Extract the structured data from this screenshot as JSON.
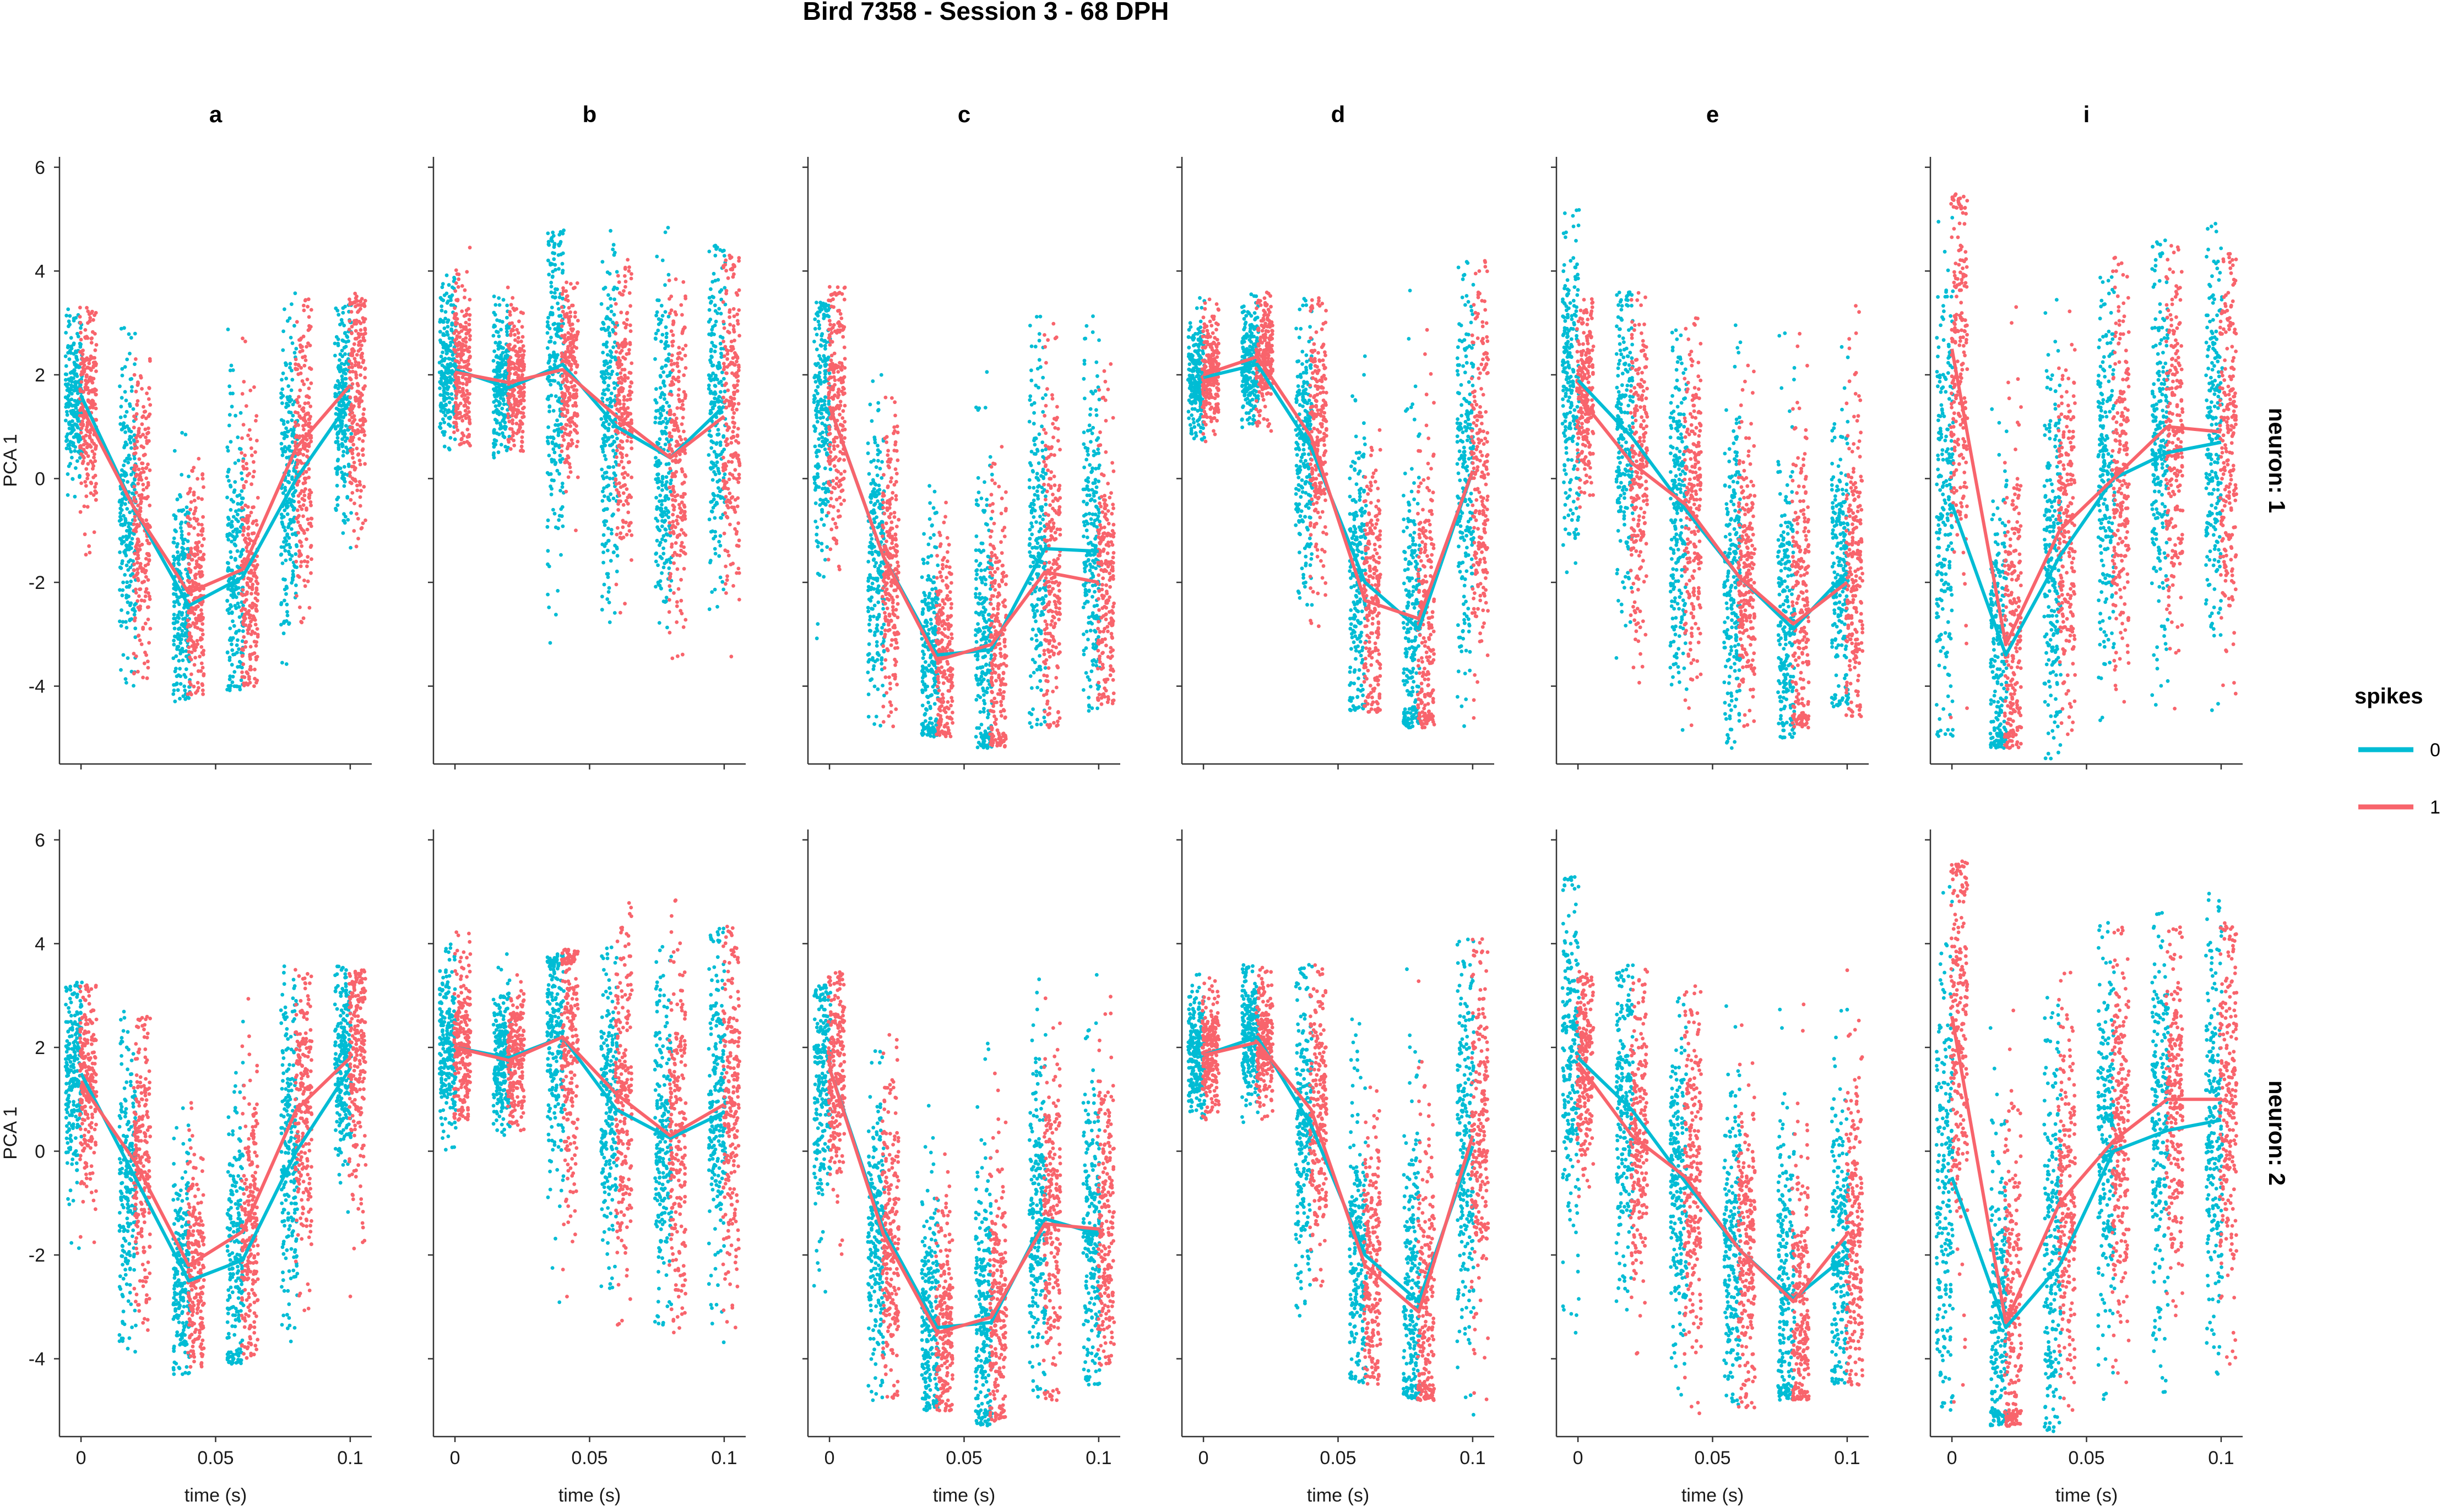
{
  "chart_data": {
    "type": "scatter",
    "title": "Bird 7358 - Session 3 - 68 DPH",
    "xlabel": "time (s)",
    "ylabel": "PCA 1",
    "xlim": [
      -0.008,
      0.108
    ],
    "ylim": [
      -5.5,
      6.2
    ],
    "xticks": [
      0,
      0.05,
      0.1
    ],
    "xtick_labels": [
      "0",
      "0.05",
      "0.1"
    ],
    "yticks": [
      -4,
      -2,
      0,
      2,
      4,
      6
    ],
    "ytick_labels": [
      "-4",
      "-2",
      "0",
      "2",
      "4",
      "6"
    ],
    "grid": false,
    "legend": {
      "title": "spikes",
      "position": "right",
      "entries": [
        {
          "label": "0",
          "color": "#00BCD4"
        },
        {
          "label": "1",
          "color": "#F8646C"
        }
      ]
    },
    "columns": [
      "a",
      "b",
      "c",
      "d",
      "e",
      "i"
    ],
    "rows": [
      "neuron: 1",
      "neuron: 2"
    ],
    "x": [
      0,
      0.02,
      0.04,
      0.06,
      0.08,
      0.1
    ],
    "panels": [
      {
        "column": "a",
        "row": "neuron: 1",
        "series": [
          {
            "name": "0",
            "means": [
              1.6,
              -0.6,
              -2.45,
              -1.9,
              0.0,
              1.5
            ],
            "lows": [
              -0.5,
              -4.0,
              -4.3,
              -4.1,
              -3.8,
              -1.5
            ],
            "highs": [
              3.3,
              3.0,
              1.2,
              3.2,
              3.6,
              3.5
            ]
          },
          {
            "name": "1",
            "means": [
              1.4,
              -0.6,
              -2.2,
              -1.75,
              0.6,
              1.8
            ],
            "lows": [
              -1.8,
              -4.0,
              -4.2,
              -4.0,
              -3.6,
              -3.0
            ],
            "highs": [
              3.3,
              3.0,
              1.0,
              3.0,
              3.5,
              3.6
            ]
          }
        ]
      },
      {
        "column": "b",
        "row": "neuron: 1",
        "series": [
          {
            "name": "0",
            "means": [
              2.1,
              1.75,
              2.2,
              1.0,
              0.4,
              1.4
            ],
            "lows": [
              0.5,
              0.4,
              -3.8,
              -3.0,
              -3.0,
              -3.7
            ],
            "highs": [
              4.0,
              3.8,
              4.8,
              4.8,
              4.9,
              4.5
            ]
          },
          {
            "name": "1",
            "means": [
              2.05,
              1.85,
              2.1,
              1.2,
              0.4,
              1.2
            ],
            "lows": [
              0.6,
              0.5,
              -1.0,
              -3.5,
              -3.5,
              -3.5
            ],
            "highs": [
              4.5,
              3.9,
              3.8,
              4.3,
              4.0,
              4.3
            ]
          }
        ]
      },
      {
        "column": "c",
        "row": "neuron: 1",
        "series": [
          {
            "name": "0",
            "means": [
              1.4,
              -1.5,
              -3.4,
              -3.3,
              -1.35,
              -1.4
            ],
            "lows": [
              -3.4,
              -4.8,
              -5.0,
              -5.2,
              -4.8,
              -4.5
            ],
            "highs": [
              3.4,
              2.0,
              1.0,
              2.1,
              3.5,
              3.3
            ]
          },
          {
            "name": "1",
            "means": [
              1.4,
              -1.5,
              -3.5,
              -3.2,
              -1.8,
              -2.0
            ],
            "lows": [
              -2.4,
              -4.8,
              -5.0,
              -5.2,
              -4.8,
              -4.4
            ],
            "highs": [
              3.7,
              1.6,
              0.2,
              2.0,
              3.2,
              3.0
            ]
          }
        ]
      },
      {
        "column": "d",
        "row": "neuron: 1",
        "series": [
          {
            "name": "0",
            "means": [
              1.95,
              2.2,
              0.6,
              -2.0,
              -2.9,
              0.15
            ],
            "lows": [
              0.7,
              0.9,
              -3.2,
              -4.5,
              -4.8,
              -5.4
            ],
            "highs": [
              3.5,
              3.6,
              3.5,
              3.0,
              4.0,
              4.2
            ]
          },
          {
            "name": "1",
            "means": [
              2.0,
              2.35,
              0.8,
              -2.35,
              -2.7,
              0.15
            ],
            "lows": [
              0.7,
              0.9,
              -3.0,
              -4.5,
              -4.8,
              -4.8
            ],
            "highs": [
              3.5,
              3.6,
              3.5,
              1.8,
              3.6,
              4.2
            ]
          }
        ]
      },
      {
        "column": "e",
        "row": "neuron: 1",
        "series": [
          {
            "name": "0",
            "means": [
              1.9,
              0.8,
              -0.6,
              -1.9,
              -2.9,
              -1.8
            ],
            "lows": [
              -2.0,
              -4.0,
              -5.0,
              -5.2,
              -5.0,
              -4.4
            ],
            "highs": [
              5.3,
              3.6,
              3.0,
              3.4,
              3.0,
              3.0
            ]
          },
          {
            "name": "1",
            "means": [
              1.6,
              0.3,
              -0.5,
              -1.9,
              -2.8,
              -2.0
            ],
            "lows": [
              -1.3,
              -4.0,
              -5.0,
              -4.8,
              -4.8,
              -4.6
            ],
            "highs": [
              3.5,
              3.6,
              3.3,
              2.5,
              3.2,
              3.5
            ]
          }
        ]
      },
      {
        "column": "i",
        "row": "neuron: 1",
        "series": [
          {
            "name": "0",
            "means": [
              -0.5,
              -3.4,
              -1.5,
              0.0,
              0.5,
              0.7
            ],
            "lows": [
              -5.0,
              -5.2,
              -5.4,
              -4.8,
              -4.8,
              -4.5
            ],
            "highs": [
              5.6,
              3.5,
              3.8,
              4.0,
              4.6,
              5.0
            ]
          },
          {
            "name": "1",
            "means": [
              2.5,
              -3.2,
              -1.0,
              0.0,
              1.0,
              0.9
            ],
            "lows": [
              -5.0,
              -5.2,
              -5.0,
              -4.5,
              -4.5,
              -4.5
            ],
            "highs": [
              5.5,
              3.5,
              3.5,
              4.4,
              4.5,
              4.4
            ]
          }
        ]
      },
      {
        "column": "a",
        "row": "neuron: 2",
        "series": [
          {
            "name": "0",
            "means": [
              1.5,
              -0.5,
              -2.5,
              -2.1,
              0.0,
              1.6
            ],
            "lows": [
              -2.0,
              -4.0,
              -4.3,
              -4.1,
              -3.8,
              -1.5
            ],
            "highs": [
              3.3,
              2.7,
              1.0,
              3.2,
              3.6,
              3.6
            ]
          },
          {
            "name": "1",
            "means": [
              1.3,
              -0.2,
              -2.2,
              -1.55,
              0.8,
              1.8
            ],
            "lows": [
              -2.0,
              -3.9,
              -4.2,
              -4.0,
              -3.8,
              -2.8
            ],
            "highs": [
              3.2,
              2.6,
              1.0,
              3.2,
              3.5,
              3.5
            ]
          }
        ]
      },
      {
        "column": "b",
        "row": "neuron: 2",
        "series": [
          {
            "name": "0",
            "means": [
              2.0,
              1.8,
              2.2,
              0.8,
              0.25,
              0.75
            ],
            "lows": [
              0.0,
              0.3,
              -3.0,
              -3.5,
              -3.5,
              -3.7
            ],
            "highs": [
              4.0,
              3.8,
              3.8,
              4.0,
              4.0,
              4.3
            ]
          },
          {
            "name": "1",
            "means": [
              2.0,
              1.75,
              2.2,
              1.1,
              0.3,
              0.9
            ],
            "lows": [
              0.6,
              0.4,
              -3.8,
              -3.5,
              -3.5,
              -3.7
            ],
            "highs": [
              4.5,
              3.8,
              3.9,
              4.9,
              4.9,
              4.4
            ]
          }
        ]
      },
      {
        "column": "c",
        "row": "neuron: 2",
        "series": [
          {
            "name": "0",
            "means": [
              1.6,
              -1.5,
              -3.4,
              -3.3,
              -1.3,
              -1.6
            ],
            "lows": [
              -3.0,
              -4.8,
              -5.0,
              -5.3,
              -4.8,
              -4.5
            ],
            "highs": [
              3.2,
              2.0,
              1.0,
              2.2,
              3.5,
              3.4
            ]
          },
          {
            "name": "1",
            "means": [
              1.6,
              -1.6,
              -3.5,
              -3.2,
              -1.4,
              -1.5
            ],
            "lows": [
              -2.0,
              -4.8,
              -5.0,
              -5.2,
              -4.8,
              -4.2
            ],
            "highs": [
              3.5,
              2.6,
              0.0,
              2.0,
              3.0,
              3.2
            ]
          }
        ]
      },
      {
        "column": "d",
        "row": "neuron: 2",
        "series": [
          {
            "name": "0",
            "means": [
              1.85,
              2.2,
              0.5,
              -2.0,
              -2.9,
              0.1
            ],
            "lows": [
              0.6,
              0.5,
              -3.5,
              -4.5,
              -4.8,
              -5.3
            ],
            "highs": [
              3.5,
              3.6,
              3.6,
              3.0,
              4.0,
              4.2
            ]
          },
          {
            "name": "1",
            "means": [
              1.85,
              2.1,
              0.8,
              -2.2,
              -3.1,
              0.3
            ],
            "lows": [
              0.6,
              0.6,
              -3.3,
              -4.5,
              -4.8,
              -4.8
            ],
            "highs": [
              3.5,
              3.7,
              3.6,
              1.9,
              3.6,
              4.1
            ]
          }
        ]
      },
      {
        "column": "e",
        "row": "neuron: 2",
        "series": [
          {
            "name": "0",
            "means": [
              1.8,
              0.8,
              -0.6,
              -1.9,
              -2.85,
              -2.0
            ],
            "lows": [
              -3.5,
              -4.0,
              -5.0,
              -5.0,
              -4.8,
              -4.5
            ],
            "highs": [
              5.3,
              3.6,
              3.0,
              3.0,
              3.0,
              3.0
            ]
          },
          {
            "name": "1",
            "means": [
              1.7,
              0.3,
              -0.5,
              -1.9,
              -2.9,
              -1.6
            ],
            "lows": [
              -1.0,
              -4.0,
              -5.3,
              -5.0,
              -4.8,
              -4.5
            ],
            "highs": [
              3.5,
              3.5,
              3.3,
              2.5,
              3.0,
              3.5
            ]
          }
        ]
      },
      {
        "column": "i",
        "row": "neuron: 2",
        "series": [
          {
            "name": "0",
            "means": [
              -0.5,
              -3.4,
              -2.2,
              0.0,
              0.4,
              0.6
            ],
            "lows": [
              -5.0,
              -5.3,
              -5.4,
              -4.8,
              -4.8,
              -4.5
            ],
            "highs": [
              5.7,
              3.4,
              3.8,
              4.4,
              4.6,
              5.0
            ]
          },
          {
            "name": "1",
            "means": [
              2.6,
              -3.3,
              -1.0,
              0.2,
              1.0,
              1.0
            ],
            "lows": [
              -5.0,
              -5.3,
              -5.0,
              -4.5,
              -4.5,
              -4.5
            ],
            "highs": [
              5.6,
              3.5,
              3.5,
              4.4,
              4.5,
              4.4
            ]
          }
        ]
      }
    ]
  }
}
